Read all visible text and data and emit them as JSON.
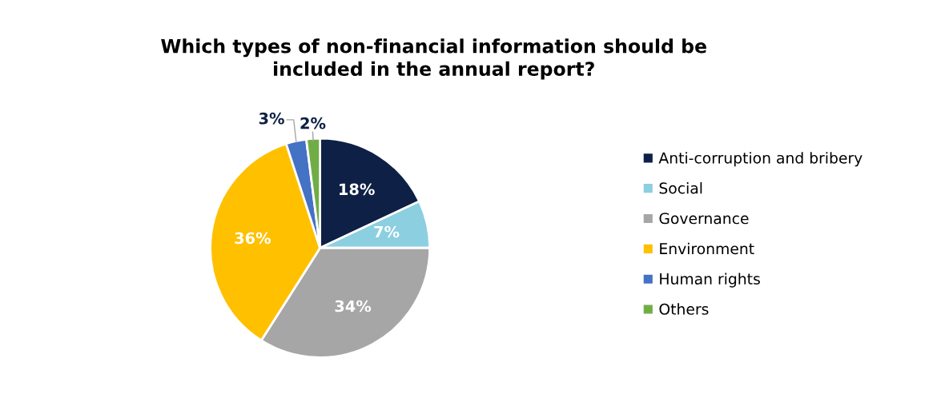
{
  "chart_data": {
    "type": "pie",
    "title": "Which types of non-financial information should be\nincluded in the annual report?",
    "categories": [
      "Anti-corruption and bribery",
      "Social",
      "Governance",
      "Environment",
      "Human rights",
      "Others"
    ],
    "values": [
      18,
      7,
      34,
      36,
      3,
      2
    ],
    "colors": [
      "#0e2045",
      "#8ccfe0",
      "#a6a6a6",
      "#ffc000",
      "#4472c4",
      "#70ad47"
    ],
    "value_labels": [
      "18%",
      "7%",
      "34%",
      "36%",
      "3%",
      "2%"
    ],
    "legend": "right"
  }
}
